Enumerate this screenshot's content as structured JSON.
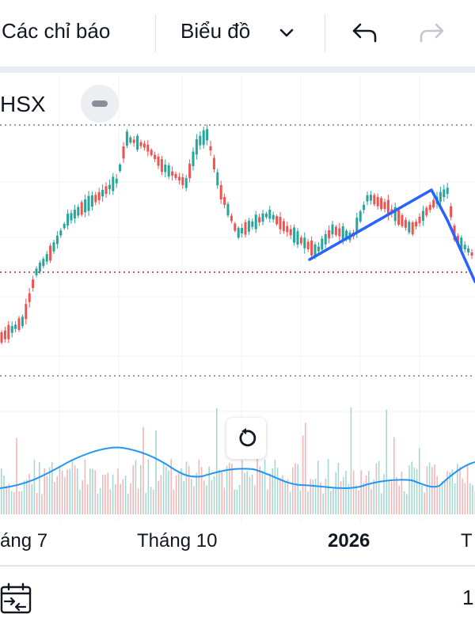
{
  "toolbar": {
    "indicators_label": "Các chỉ báo",
    "chart_type_label": "Biểu đồ"
  },
  "chart": {
    "exchange": "HSX",
    "x_labels": {
      "jul": "áng 7",
      "oct": "Tháng 10",
      "year": "2026",
      "next": "T"
    },
    "bottom_value": "1"
  },
  "colors": {
    "up": "#26a69a",
    "down": "#ef5350",
    "trendline": "#2962ff",
    "volume_ma": "#2196f3",
    "level": "#b22833"
  },
  "icons": [
    "chevron-down-icon",
    "undo-icon",
    "redo-icon",
    "minus-icon",
    "reset-icon",
    "calendar-range-icon"
  ]
}
